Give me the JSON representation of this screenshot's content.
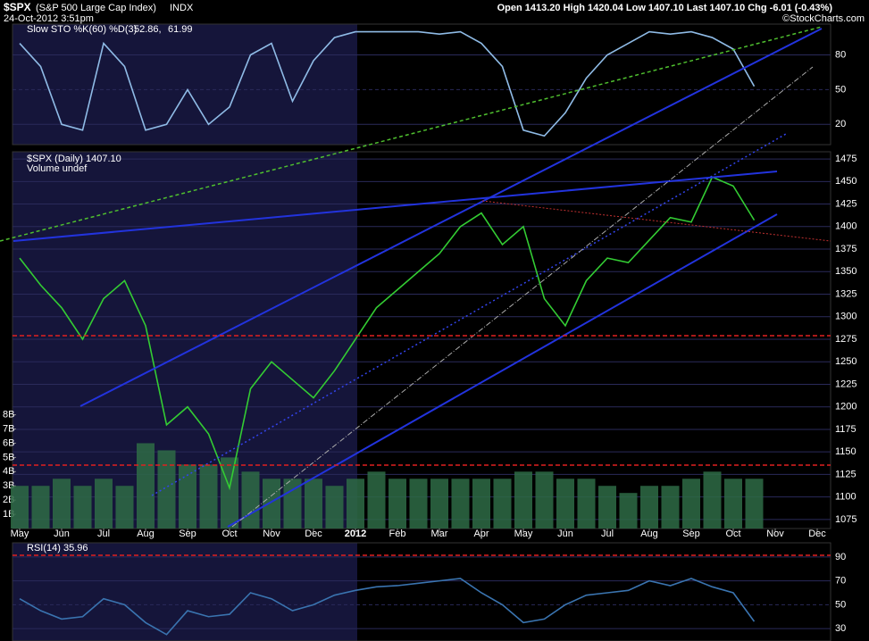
{
  "header": {
    "symbol": "$SPX",
    "name": "(S&P 500 Large Cap Index)",
    "exchange": "INDX",
    "timestamp": "24-Oct-2012 3:51pm",
    "quote": "Open 1413.20  High 1420.04  Low 1407.10  Last 1407.10  Chg -6.01 (-0.43%)",
    "credit": "©StockCharts.com"
  },
  "chart_data": [
    {
      "type": "line",
      "title": "Slow STO %K(60) %D(3)",
      "readout": [
        "52.86,",
        "61.99"
      ],
      "series": [
        {
          "color": "#8fbbe6",
          "values": [
            90,
            70,
            20,
            15,
            90,
            70,
            15,
            20,
            50,
            20,
            35,
            80,
            90,
            40,
            75,
            95,
            100,
            100,
            100,
            100,
            98,
            100,
            90,
            70,
            15,
            10,
            30,
            60,
            80,
            90,
            100,
            98,
            100,
            95,
            85,
            52.86,
            null,
            null,
            null
          ]
        }
      ],
      "ylim": [
        2.5,
        106.6
      ],
      "yticks": [
        20,
        50,
        80
      ],
      "grid": true
    },
    {
      "type": "line",
      "categories": [
        "May",
        null,
        "Jun",
        null,
        "Jul",
        null,
        "Aug",
        null,
        "Sep",
        null,
        "Oct",
        null,
        "Nov",
        null,
        "Dec",
        null,
        "2012",
        null,
        "Feb",
        null,
        "Mar",
        null,
        "Apr",
        null,
        "May",
        null,
        "Jun",
        null,
        "Jul",
        null,
        "Aug",
        null,
        "Sep",
        null,
        "Oct",
        null,
        "Nov",
        null,
        "Dec"
      ],
      "series": [
        {
          "name": "$SPX (Daily) 1407.10",
          "color": "#33cc33",
          "values": [
            1365,
            1335,
            1310,
            1275,
            1320,
            1340,
            1290,
            1180,
            1200,
            1170,
            1110,
            1220,
            1250,
            1230,
            1210,
            1240,
            1275,
            1310,
            1330,
            1350,
            1370,
            1400,
            1415,
            1380,
            1400,
            1320,
            1290,
            1340,
            1365,
            1360,
            1385,
            1410,
            1405,
            1455,
            1445,
            1407.1,
            null,
            null,
            null
          ]
        },
        {
          "name": "Volume undef",
          "color": "#2e6b45",
          "axis": "y2",
          "values": [
            3,
            3,
            3.5,
            3,
            3.5,
            3,
            6,
            5.5,
            4.5,
            4.5,
            5,
            4,
            3.5,
            3.5,
            3.5,
            3,
            3.5,
            4,
            3.5,
            3.5,
            3.5,
            3.5,
            3.5,
            3.5,
            4,
            4,
            3.5,
            3.5,
            3,
            2.5,
            3,
            3,
            3.5,
            4,
            3.5,
            3.5,
            null,
            null,
            null
          ]
        }
      ],
      "ylim": [
        1065,
        1483
      ],
      "yticks": [
        1075,
        1100,
        1125,
        1150,
        1175,
        1200,
        1225,
        1250,
        1275,
        1300,
        1325,
        1350,
        1375,
        1400,
        1425,
        1450,
        1475
      ],
      "y2lim": [
        0,
        26.5
      ],
      "y2ticks": [
        {
          "value": 1,
          "label": "1B"
        },
        {
          "value": 2,
          "label": "2B"
        },
        {
          "value": 3,
          "label": "3B"
        },
        {
          "value": 4,
          "label": "4B"
        },
        {
          "value": 5,
          "label": "5B"
        },
        {
          "value": 6,
          "label": "6B"
        },
        {
          "value": 7,
          "label": "7B"
        },
        {
          "value": 8,
          "label": "8B"
        }
      ],
      "grid": true
    },
    {
      "type": "line",
      "title": "RSI(14) 35.96",
      "series": [
        {
          "color": "#3a74b0",
          "values": [
            55,
            45,
            38,
            40,
            55,
            50,
            35,
            25,
            45,
            40,
            42,
            60,
            55,
            45,
            50,
            58,
            62,
            65,
            66,
            68,
            70,
            72,
            60,
            50,
            35,
            38,
            50,
            58,
            60,
            62,
            70,
            66,
            72,
            65,
            60,
            35.96,
            null,
            null,
            null
          ]
        }
      ],
      "ylim": [
        19.6,
        101.9
      ],
      "yticks": [
        30,
        50,
        70,
        90
      ],
      "grid": true
    }
  ]
}
